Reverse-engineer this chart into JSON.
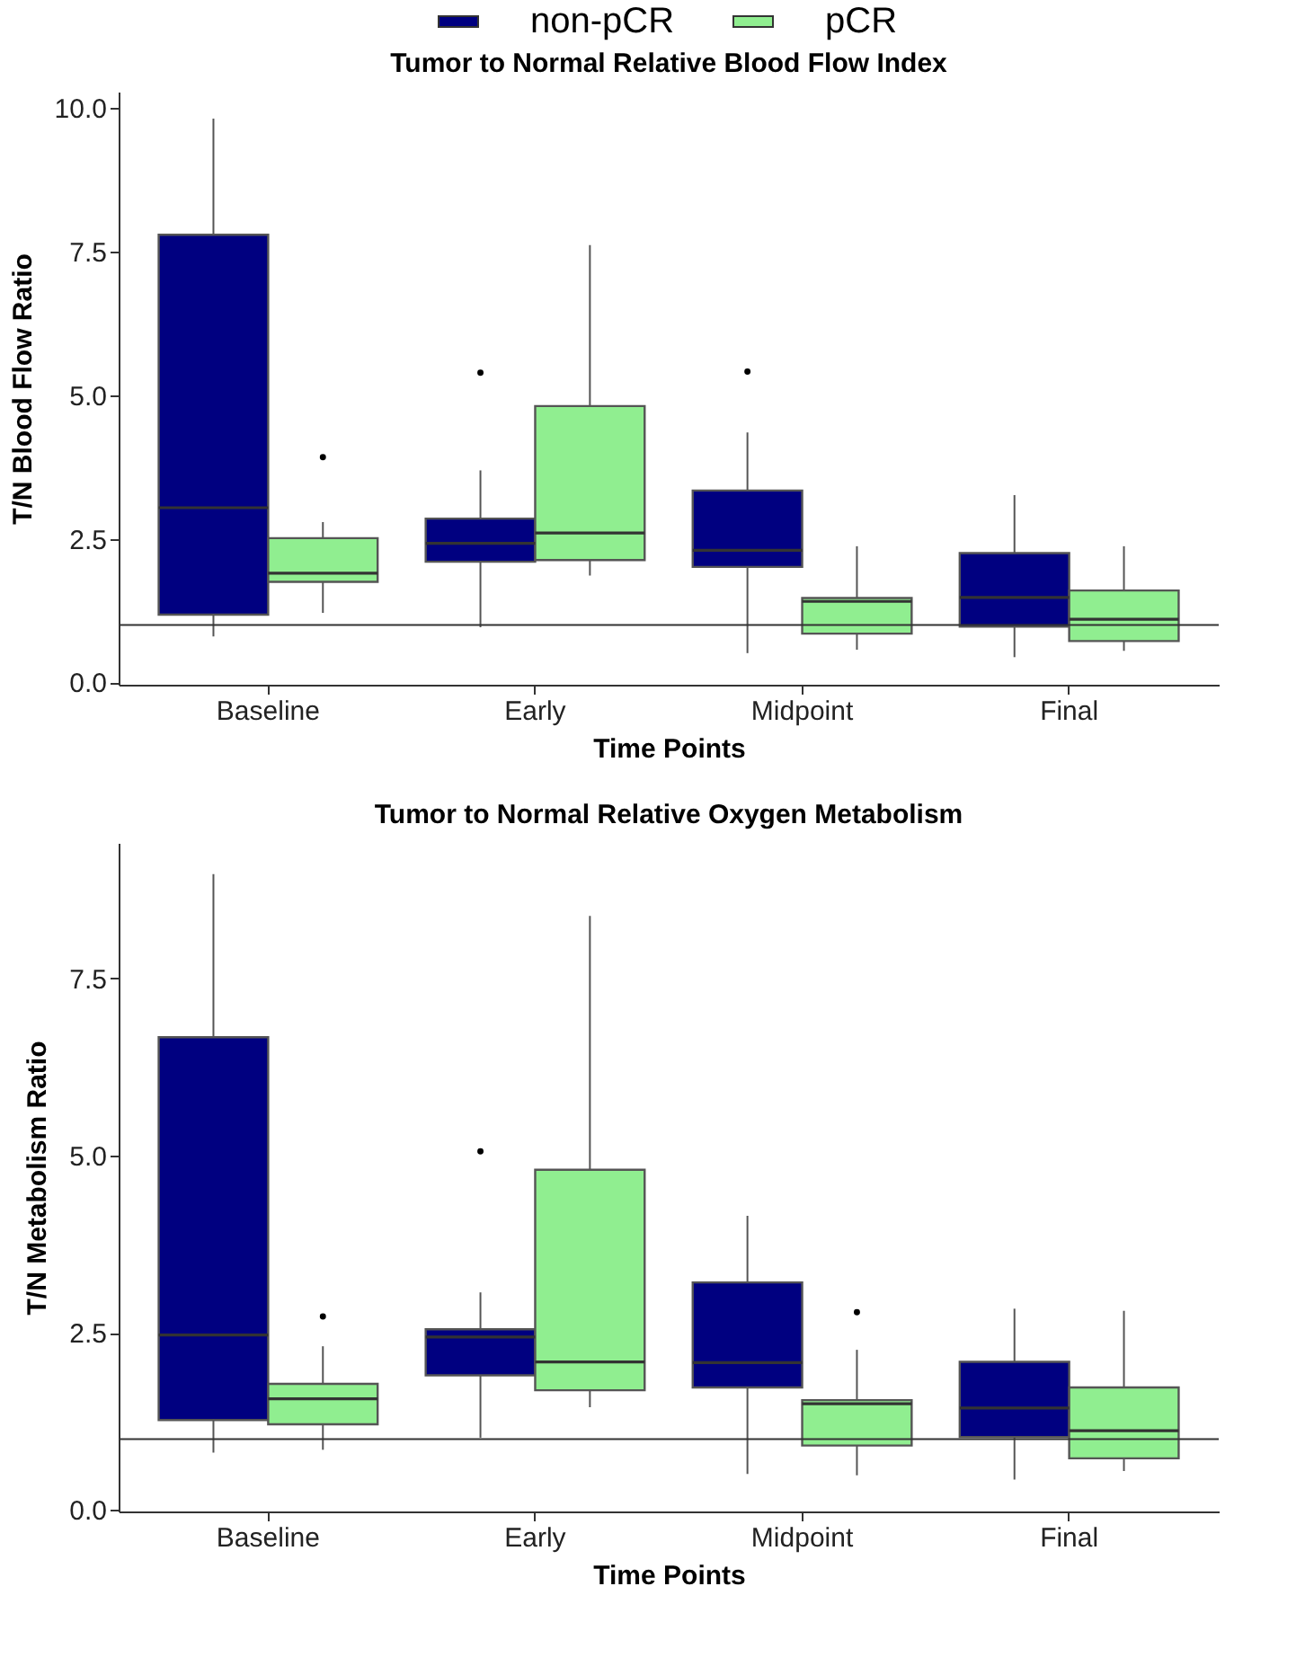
{
  "chart_data": [
    {
      "type": "box",
      "title": "Tumor to Normal Relative Blood Flow Index",
      "xlabel": "Time Points",
      "ylabel": "T/N Blood Flow Ratio",
      "categories": [
        "Baseline",
        "Early",
        "Midpoint",
        "Final"
      ],
      "legend": "top",
      "ylim": [
        -0.04,
        10.28
      ],
      "yticks": [
        {
          "value": 0,
          "label": "0.0"
        },
        {
          "value": 2.5,
          "label": "2.5"
        },
        {
          "value": 5,
          "label": "5.0"
        },
        {
          "value": 7.5,
          "label": "7.5"
        },
        {
          "value": 10,
          "label": "10.0"
        }
      ],
      "ref_lines": [
        {
          "axis": "y",
          "value": 1
        }
      ],
      "series": [
        {
          "name": "non-pCR",
          "color": "#000080",
          "boxes": [
            {
              "low": 0.8,
              "q1": 1.18,
              "median": 3.04,
              "q3": 7.79,
              "high": 9.81
            },
            {
              "low": 0.96,
              "q1": 2.1,
              "median": 2.42,
              "q3": 2.85,
              "high": 3.69,
              "outliers": [
                5.39
              ]
            },
            {
              "low": 0.51,
              "q1": 2.01,
              "median": 2.3,
              "q3": 3.34,
              "high": 4.35,
              "outliers": [
                5.41
              ]
            },
            {
              "low": 0.44,
              "q1": 0.97,
              "median": 1.48,
              "q3": 2.25,
              "high": 3.26
            }
          ]
        },
        {
          "name": "pCR",
          "color": "#90ee90",
          "boxes": [
            {
              "low": 1.21,
              "q1": 1.75,
              "median": 1.9,
              "q3": 2.51,
              "high": 2.79,
              "outliers": [
                3.92
              ]
            },
            {
              "low": 1.86,
              "q1": 2.13,
              "median": 2.6,
              "q3": 4.81,
              "high": 7.61
            },
            {
              "low": 0.57,
              "q1": 0.85,
              "median": 1.41,
              "q3": 1.47,
              "high": 2.37
            },
            {
              "low": 0.55,
              "q1": 0.72,
              "median": 1.1,
              "q3": 1.6,
              "high": 2.37
            }
          ]
        }
      ]
    },
    {
      "type": "box",
      "title": "Tumor to Normal Relative Oxygen Metabolism",
      "xlabel": "Time Points",
      "ylabel": "T/N Metabolism Ratio",
      "categories": [
        "Baseline",
        "Early",
        "Midpoint",
        "Final"
      ],
      "ylim": [
        -0.02,
        9.41
      ],
      "yticks": [
        {
          "value": 0,
          "label": "0.0"
        },
        {
          "value": 2.5,
          "label": "2.5"
        },
        {
          "value": 5,
          "label": "5.0"
        },
        {
          "value": 7.5,
          "label": "7.5"
        }
      ],
      "ref_lines": [
        {
          "axis": "y",
          "value": 1
        }
      ],
      "series": [
        {
          "name": "non-pCR",
          "color": "#000080",
          "boxes": [
            {
              "low": 0.81,
              "q1": 1.27,
              "median": 2.47,
              "q3": 6.67,
              "high": 8.97
            },
            {
              "low": 1.02,
              "q1": 1.9,
              "median": 2.44,
              "q3": 2.55,
              "high": 3.07,
              "outliers": [
                5.06
              ]
            },
            {
              "low": 0.51,
              "q1": 1.73,
              "median": 2.08,
              "q3": 3.21,
              "high": 4.15
            },
            {
              "low": 0.43,
              "q1": 1.03,
              "median": 1.44,
              "q3": 2.09,
              "high": 2.84
            }
          ]
        },
        {
          "name": "pCR",
          "color": "#90ee90",
          "boxes": [
            {
              "low": 0.85,
              "q1": 1.21,
              "median": 1.57,
              "q3": 1.78,
              "high": 2.31,
              "outliers": [
                2.73
              ]
            },
            {
              "low": 1.45,
              "q1": 1.69,
              "median": 2.09,
              "q3": 4.8,
              "high": 8.38
            },
            {
              "low": 0.49,
              "q1": 0.91,
              "median": 1.5,
              "q3": 1.55,
              "high": 2.26,
              "outliers": [
                2.79
              ]
            },
            {
              "low": 0.55,
              "q1": 0.73,
              "median": 1.12,
              "q3": 1.73,
              "high": 2.81
            }
          ]
        }
      ]
    }
  ]
}
